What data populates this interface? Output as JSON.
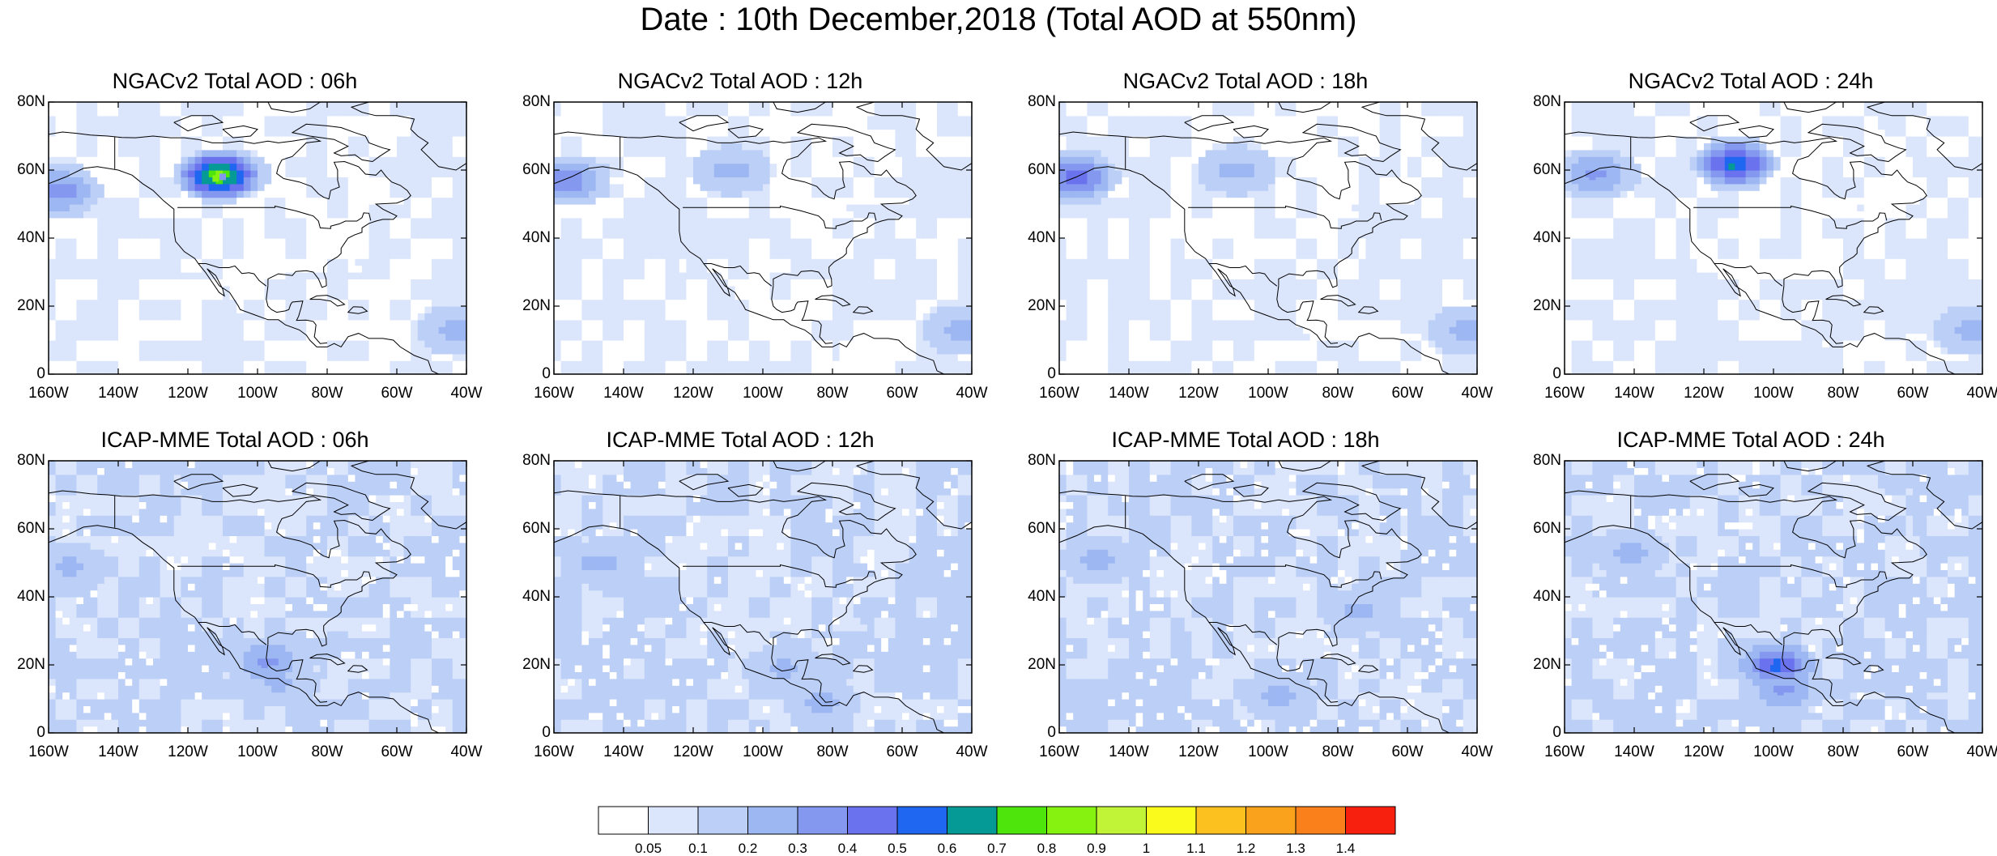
{
  "figure": {
    "title": "Date : 10th December,2018 (Total AOD at 550nm)"
  },
  "axes": {
    "lat_labels": [
      "0",
      "20N",
      "40N",
      "60N",
      "80N"
    ],
    "lat_values": [
      0,
      20,
      40,
      60,
      80
    ],
    "lon_labels": [
      "160W",
      "140W",
      "120W",
      "100W",
      "80W",
      "60W",
      "40W"
    ],
    "lon_values": [
      -160,
      -140,
      -120,
      -100,
      -80,
      -60,
      -40
    ],
    "lat_range": [
      0,
      80
    ],
    "lon_range": [
      -160,
      -40
    ]
  },
  "panels": [
    {
      "title": "NGACv2 Total AOD : 06h",
      "model": "NGACv2",
      "hour": "06h",
      "features": [
        {
          "lon": -112,
          "lat": 57.5,
          "aod": 0.8
        },
        {
          "lon": -158,
          "lat": 53,
          "aod": 0.35
        },
        {
          "lon": -110,
          "lat": 58,
          "aod": 0.3
        },
        {
          "lon": -44,
          "lat": 12,
          "aod": 0.2
        }
      ]
    },
    {
      "title": "NGACv2 Total AOD : 12h",
      "model": "NGACv2",
      "hour": "12h",
      "features": [
        {
          "lon": -157,
          "lat": 56,
          "aod": 0.35
        },
        {
          "lon": -110,
          "lat": 59,
          "aod": 0.2
        },
        {
          "lon": -44,
          "lat": 12,
          "aod": 0.2
        }
      ]
    },
    {
      "title": "NGACv2 Total AOD : 18h",
      "model": "NGACv2",
      "hour": "18h",
      "features": [
        {
          "lon": -156,
          "lat": 57,
          "aod": 0.45
        },
        {
          "lon": -110,
          "lat": 59,
          "aod": 0.2
        },
        {
          "lon": -44,
          "lat": 12,
          "aod": 0.2
        }
      ]
    },
    {
      "title": "NGACv2 Total AOD : 24h",
      "model": "NGACv2",
      "hour": "24h",
      "features": [
        {
          "lon": -112,
          "lat": 61,
          "aod": 0.6
        },
        {
          "lon": -152,
          "lat": 58,
          "aod": 0.3
        },
        {
          "lon": -44,
          "lat": 12,
          "aod": 0.2
        }
      ]
    },
    {
      "title": "ICAP-MME Total AOD : 06h",
      "model": "ICAP-MME",
      "hour": "06h",
      "features": [
        {
          "lon": -155,
          "lat": 48,
          "aod": 0.2
        },
        {
          "lon": -98,
          "lat": 20,
          "aod": 0.3
        },
        {
          "lon": -95,
          "lat": 14,
          "aod": 0.2
        }
      ]
    },
    {
      "title": "ICAP-MME Total AOD : 12h",
      "model": "ICAP-MME",
      "hour": "12h",
      "features": [
        {
          "lon": -148,
          "lat": 49,
          "aod": 0.2
        },
        {
          "lon": -95,
          "lat": 18,
          "aod": 0.2
        },
        {
          "lon": -84,
          "lat": 8,
          "aod": 0.2
        }
      ]
    },
    {
      "title": "ICAP-MME Total AOD : 18h",
      "model": "ICAP-MME",
      "hour": "18h",
      "features": [
        {
          "lon": -150,
          "lat": 50,
          "aod": 0.2
        },
        {
          "lon": -98,
          "lat": 10,
          "aod": 0.2
        },
        {
          "lon": -75,
          "lat": 35,
          "aod": 0.2
        }
      ]
    },
    {
      "title": "ICAP-MME Total AOD : 24h",
      "model": "ICAP-MME",
      "hour": "24h",
      "features": [
        {
          "lon": -142,
          "lat": 52,
          "aod": 0.2
        },
        {
          "lon": -100,
          "lat": 19,
          "aod": 0.5
        },
        {
          "lon": -98,
          "lat": 12,
          "aod": 0.3
        }
      ]
    }
  ],
  "colorbar": {
    "labels": [
      "0.05",
      "0.1",
      "0.2",
      "0.3",
      "0.4",
      "0.5",
      "0.6",
      "0.7",
      "0.8",
      "0.9",
      "1",
      "1.1",
      "1.2",
      "1.3",
      "1.4"
    ],
    "colors": [
      "#ffffff",
      "#dbe5fb",
      "#bccff7",
      "#9db7f3",
      "#8598f0",
      "#6a72ee",
      "#1f66f1",
      "#069a96",
      "#4ee50d",
      "#86f20f",
      "#c1f436",
      "#fafa1c",
      "#fcc11f",
      "#fba21d",
      "#f9801b",
      "#f7200f"
    ]
  }
}
